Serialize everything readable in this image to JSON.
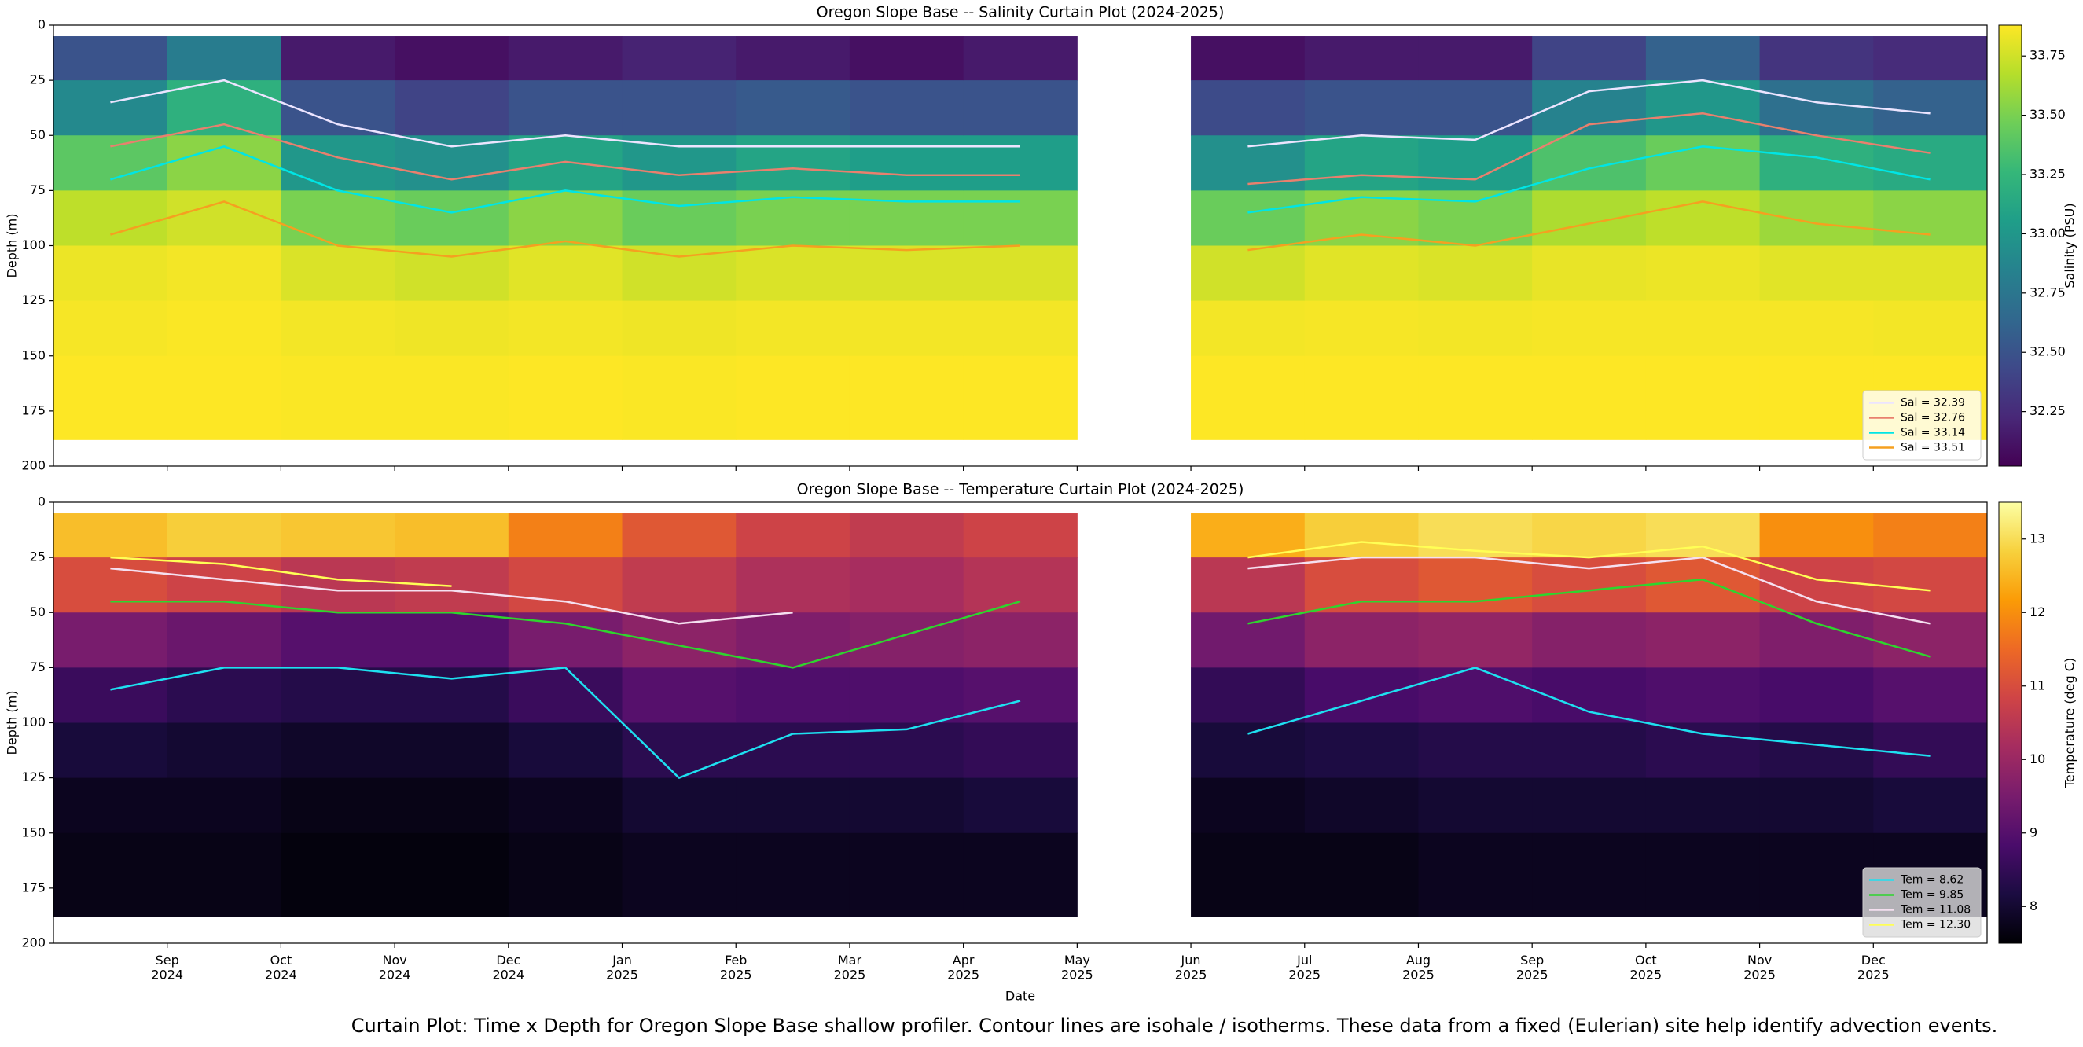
{
  "chart_data": [
    {
      "type": "heatmap",
      "title": "Oregon Slope Base -- Salinity Curtain Plot (2024-2025)",
      "ylabel": "Depth (m)",
      "ylim": [
        200,
        0
      ],
      "yticks": [
        0,
        25,
        50,
        75,
        100,
        125,
        150,
        175,
        200
      ],
      "xlim": [
        "2024-08",
        "2026-01"
      ],
      "cmap": "viridis",
      "clim": [
        32.02,
        33.88
      ],
      "colorbar_label": "Salinity (PSU)",
      "colorbar_ticks": [
        32.25,
        {
          "value": 32.5,
          "label": "32.50"
        },
        32.75,
        {
          "value": 33,
          "label": "33.00"
        },
        33.25,
        {
          "value": 33.5,
          "label": "33.50"
        },
        33.75
      ],
      "legend": "lower right",
      "x": [
        "2024-08",
        "2024-09",
        "2024-10",
        "2024-11",
        "2024-12",
        "2025-01",
        "2025-02",
        "2025-03",
        "2025-04",
        "2025-05",
        "2025-06",
        "2025-07",
        "2025-08",
        "2025-09",
        "2025-10",
        "2025-11",
        "2025-12"
      ],
      "depth_bins": [
        5,
        25,
        50,
        75,
        100,
        125,
        150,
        188
      ],
      "values": [
        [
          32.5,
          32.9,
          33.4,
          33.7,
          33.83,
          33.86,
          33.88
        ],
        [
          32.8,
          33.2,
          33.55,
          33.75,
          33.85,
          33.87,
          33.88
        ],
        [
          32.15,
          32.5,
          33.0,
          33.5,
          33.78,
          33.85,
          33.87
        ],
        [
          32.1,
          32.4,
          32.95,
          33.45,
          33.75,
          33.84,
          33.87
        ],
        [
          32.15,
          32.5,
          33.1,
          33.55,
          33.8,
          33.85,
          33.88
        ],
        [
          32.2,
          32.5,
          33.0,
          33.45,
          33.75,
          33.84,
          33.87
        ],
        [
          32.15,
          32.55,
          33.1,
          33.5,
          33.78,
          33.85,
          33.88
        ],
        [
          32.1,
          32.5,
          33.05,
          33.5,
          33.78,
          33.85,
          33.88
        ],
        [
          32.15,
          32.5,
          33.05,
          33.5,
          33.78,
          33.85,
          33.88
        ],
        null,
        [
          32.1,
          32.45,
          32.95,
          33.45,
          33.75,
          33.85,
          33.88
        ],
        [
          32.15,
          32.5,
          33.1,
          33.55,
          33.8,
          33.86,
          33.88
        ],
        [
          32.15,
          32.5,
          33.05,
          33.5,
          33.78,
          33.85,
          33.88
        ],
        [
          32.4,
          32.85,
          33.35,
          33.65,
          33.82,
          33.86,
          33.88
        ],
        [
          32.6,
          33.0,
          33.45,
          33.7,
          33.83,
          33.86,
          33.88
        ],
        [
          32.3,
          32.7,
          33.2,
          33.6,
          33.8,
          33.86,
          33.88
        ],
        [
          32.25,
          32.6,
          33.15,
          33.55,
          33.8,
          33.85,
          33.88
        ]
      ],
      "series": [
        {
          "name": "Sal = 32.39",
          "color": "#ece4ff",
          "values": [
            35,
            25,
            45,
            55,
            50,
            55,
            55,
            55,
            55,
            null,
            55,
            50,
            52,
            30,
            25,
            35,
            40
          ]
        },
        {
          "name": "Sal = 32.76",
          "color": "#e9806e",
          "values": [
            55,
            45,
            60,
            70,
            62,
            68,
            65,
            68,
            68,
            null,
            72,
            68,
            70,
            45,
            40,
            50,
            58
          ]
        },
        {
          "name": "Sal = 33.14",
          "color": "#00e5e5",
          "values": [
            70,
            55,
            75,
            85,
            75,
            82,
            78,
            80,
            80,
            null,
            85,
            78,
            80,
            65,
            55,
            60,
            70
          ]
        },
        {
          "name": "Sal = 33.51",
          "color": "#f5a020",
          "values": [
            95,
            80,
            100,
            105,
            98,
            105,
            100,
            102,
            100,
            null,
            102,
            95,
            100,
            90,
            80,
            90,
            95
          ]
        }
      ]
    },
    {
      "type": "heatmap",
      "title": "Oregon Slope Base -- Temperature Curtain Plot (2024-2025)",
      "ylabel": "Depth (m)",
      "xlabel": "Date",
      "ylim": [
        200,
        0
      ],
      "yticks": [
        0,
        25,
        50,
        75,
        100,
        125,
        150,
        175,
        200
      ],
      "xlim": [
        "2024-08",
        "2026-01"
      ],
      "xticks": [
        {
          "value": "2024-09",
          "label": "Sep 2024"
        },
        {
          "value": "2024-10",
          "label": "Oct 2024"
        },
        {
          "value": "2024-11",
          "label": "Nov 2024"
        },
        {
          "value": "2024-12",
          "label": "Dec 2024"
        },
        {
          "value": "2025-01",
          "label": "Jan 2025"
        },
        {
          "value": "2025-02",
          "label": "Feb 2025"
        },
        {
          "value": "2025-03",
          "label": "Mar 2025"
        },
        {
          "value": "2025-04",
          "label": "Apr 2025"
        },
        {
          "value": "2025-05",
          "label": "May 2025"
        },
        {
          "value": "2025-06",
          "label": "Jun 2025"
        },
        {
          "value": "2025-07",
          "label": "Jul 2025"
        },
        {
          "value": "2025-08",
          "label": "Aug 2025"
        },
        {
          "value": "2025-09",
          "label": "Sep 2025"
        },
        {
          "value": "2025-10",
          "label": "Oct 2025"
        },
        {
          "value": "2025-11",
          "label": "Nov 2025"
        },
        {
          "value": "2025-12",
          "label": "Dec 2025"
        }
      ],
      "cmap": "inferno",
      "clim": [
        7.5,
        13.5
      ],
      "colorbar_label": "Temperature (deg C)",
      "colorbar_ticks": [
        8,
        9,
        10,
        11,
        12,
        13
      ],
      "legend": "lower right",
      "x": [
        "2024-08",
        "2024-09",
        "2024-10",
        "2024-11",
        "2024-12",
        "2025-01",
        "2025-02",
        "2025-03",
        "2025-04",
        "2025-05",
        "2025-06",
        "2025-07",
        "2025-08",
        "2025-09",
        "2025-10",
        "2025-11",
        "2025-12"
      ],
      "depth_bins": [
        5,
        25,
        50,
        75,
        100,
        125,
        150,
        188
      ],
      "values": [
        [
          12.6,
          11.0,
          9.5,
          8.6,
          8.1,
          7.8,
          7.7
        ],
        [
          12.8,
          10.8,
          9.3,
          8.4,
          8.0,
          7.8,
          7.7
        ],
        [
          12.7,
          10.5,
          9.0,
          8.3,
          7.9,
          7.7,
          7.6
        ],
        [
          12.6,
          10.6,
          9.0,
          8.3,
          7.9,
          7.7,
          7.6
        ],
        [
          11.8,
          10.9,
          9.5,
          8.6,
          8.1,
          7.8,
          7.7
        ],
        [
          11.2,
          10.6,
          9.8,
          9.0,
          8.4,
          8.0,
          7.8
        ],
        [
          10.8,
          10.3,
          9.6,
          8.9,
          8.4,
          8.0,
          7.8
        ],
        [
          10.6,
          10.2,
          9.7,
          8.9,
          8.4,
          8.0,
          7.8
        ],
        [
          10.8,
          10.4,
          9.8,
          9.0,
          8.5,
          8.1,
          7.8
        ],
        null,
        [
          12.4,
          10.5,
          9.4,
          8.5,
          8.1,
          7.8,
          7.7
        ],
        [
          12.8,
          11.0,
          9.8,
          8.8,
          8.2,
          7.9,
          7.7
        ],
        [
          13.0,
          11.2,
          9.9,
          8.9,
          8.3,
          8.0,
          7.8
        ],
        [
          12.9,
          11.0,
          9.7,
          8.8,
          8.3,
          8.0,
          7.8
        ],
        [
          13.0,
          11.2,
          9.8,
          8.9,
          8.4,
          8.0,
          7.8
        ],
        [
          12.0,
          10.8,
          9.6,
          8.8,
          8.3,
          8.0,
          7.8
        ],
        [
          11.8,
          10.9,
          9.8,
          9.0,
          8.5,
          8.1,
          7.8
        ]
      ],
      "series": [
        {
          "name": "Tem = 8.62",
          "color": "#1ee0f0",
          "values": [
            85,
            75,
            75,
            80,
            75,
            125,
            105,
            103,
            90,
            null,
            105,
            90,
            75,
            95,
            105,
            110,
            115
          ]
        },
        {
          "name": "Tem = 9.85",
          "color": "#2ed52e",
          "values": [
            45,
            45,
            50,
            50,
            55,
            65,
            75,
            60,
            45,
            null,
            55,
            45,
            45,
            40,
            35,
            55,
            70
          ]
        },
        {
          "name": "Tem = 11.08",
          "color": "#f5e0f0",
          "values": [
            30,
            35,
            40,
            40,
            45,
            55,
            50,
            null,
            null,
            null,
            30,
            25,
            25,
            30,
            25,
            45,
            55
          ]
        },
        {
          "name": "Tem = 12.30",
          "color": "#ffff55",
          "values": [
            25,
            28,
            35,
            38,
            null,
            null,
            null,
            null,
            null,
            null,
            25,
            18,
            22,
            25,
            20,
            35,
            40
          ]
        }
      ]
    }
  ],
  "caption": "Curtain Plot: Time x Depth for Oregon Slope Base shallow profiler. Contour lines are isohale / isotherms. These data from a fixed (Eulerian) site help identify advection events."
}
